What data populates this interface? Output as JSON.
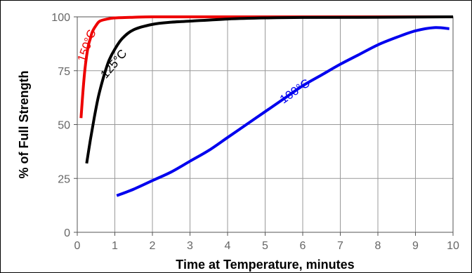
{
  "chart_data": {
    "type": "line",
    "title": "",
    "xlabel": "Time at Temperature, minutes",
    "ylabel": "% of Full Strength",
    "xlim": [
      0,
      10
    ],
    "ylim": [
      0,
      100
    ],
    "xticks": [
      "0",
      "1",
      "2",
      "3",
      "4",
      "5",
      "6",
      "7",
      "8",
      "9",
      "10"
    ],
    "yticks": [
      "0",
      "25",
      "50",
      "75",
      "100"
    ],
    "grid": true,
    "series": [
      {
        "name": "150°C",
        "color": "#ee0000",
        "points": [
          [
            0.1,
            53
          ],
          [
            0.15,
            65
          ],
          [
            0.2,
            75
          ],
          [
            0.25,
            82
          ],
          [
            0.3,
            87
          ],
          [
            0.35,
            90
          ],
          [
            0.4,
            93
          ],
          [
            0.5,
            96
          ],
          [
            0.6,
            98
          ],
          [
            0.8,
            99
          ],
          [
            1.0,
            99.5
          ],
          [
            1.5,
            99.8
          ],
          [
            2,
            100
          ],
          [
            3,
            100
          ],
          [
            5,
            100
          ],
          [
            7,
            100
          ],
          [
            10,
            100
          ]
        ]
      },
      {
        "name": "125°C",
        "color": "#000000",
        "points": [
          [
            0.25,
            32
          ],
          [
            0.35,
            43
          ],
          [
            0.45,
            53
          ],
          [
            0.55,
            62
          ],
          [
            0.65,
            69
          ],
          [
            0.75,
            75
          ],
          [
            0.85,
            80
          ],
          [
            1.0,
            85
          ],
          [
            1.2,
            90
          ],
          [
            1.5,
            94
          ],
          [
            2,
            96.5
          ],
          [
            2.5,
            97.5
          ],
          [
            3,
            98
          ],
          [
            4,
            99
          ],
          [
            5,
            99.5
          ],
          [
            6,
            99.7
          ],
          [
            8,
            99.8
          ],
          [
            10,
            100
          ]
        ]
      },
      {
        "name": "100°C",
        "color": "#0000ee",
        "points": [
          [
            1.05,
            17
          ],
          [
            1.5,
            20
          ],
          [
            2,
            24
          ],
          [
            2.5,
            28
          ],
          [
            3,
            33
          ],
          [
            3.5,
            38
          ],
          [
            4,
            44
          ],
          [
            4.5,
            50
          ],
          [
            5,
            56
          ],
          [
            5.5,
            62
          ],
          [
            6,
            68
          ],
          [
            6.5,
            73
          ],
          [
            7,
            78
          ],
          [
            7.5,
            82.5
          ],
          [
            8,
            87
          ],
          [
            8.5,
            90.5
          ],
          [
            9,
            93.5
          ],
          [
            9.5,
            95
          ],
          [
            9.9,
            94.5
          ]
        ]
      }
    ]
  }
}
